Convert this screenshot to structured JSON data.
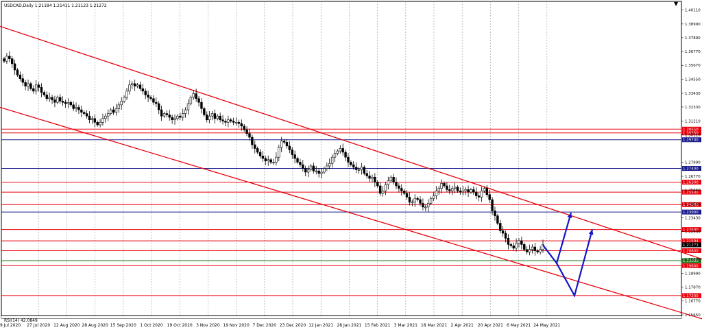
{
  "chart_data": {
    "type": "candlestick",
    "header": "USDCAD,Daily  1.21184 1.21411 1.21123 1.21272",
    "indicator_label": "RSI(14) 42.0849",
    "yticks": [
      "1.40110",
      "1.38990",
      "1.37890",
      "1.36770",
      "1.35670",
      "1.34550",
      "1.33430",
      "1.32330",
      "1.31210",
      "1.30110",
      "1.27890",
      "1.26770",
      "1.25660",
      "1.24540",
      "1.23430",
      "1.22330",
      "1.21210",
      "1.20100",
      "1.18990",
      "1.17870",
      "1.16770",
      "1.15650"
    ],
    "xticks": [
      "9 Jul 2020",
      "27 Jul 2020",
      "12 Aug 2020",
      "28 Aug 2020",
      "15 Sep 2020",
      "1 Oct 2020",
      "19 Oct 2020",
      "3 Nov 2020",
      "19 Nov 2020",
      "7 Dec 2020",
      "23 Dec 2020",
      "12 Jan 2021",
      "28 Jan 2021",
      "15 Feb 2021",
      "3 Mar 2021",
      "18 Mar 2021",
      "2 Apr 2021",
      "20 Apr 2021",
      "6 May 2021",
      "24 May 2021"
    ],
    "ylim": [
      1.156,
      1.408
    ],
    "levels": [
      {
        "value": 1.3055,
        "label": "1.30550",
        "color": "#e8000b"
      },
      {
        "value": 1.3025,
        "label": "1.30250",
        "color": "#e8000b"
      },
      {
        "value": 1.297,
        "label": "1.29700",
        "color": "#1a1a8c"
      },
      {
        "value": 1.274,
        "label": "1.27400",
        "color": "#1a1a8c"
      },
      {
        "value": 1.263,
        "label": "1.26300",
        "color": "#e8000b"
      },
      {
        "value": 1.255,
        "label": "1.25500",
        "color": "#e8000b"
      },
      {
        "value": 1.245,
        "label": "1.24500",
        "color": "#e8000b"
      },
      {
        "value": 1.239,
        "label": "1.23900",
        "color": "#1a1a8c"
      },
      {
        "value": 1.225,
        "label": "1.22500",
        "color": "#e8000b"
      },
      {
        "value": 1.2159,
        "label": "1.21594",
        "color": "#e8000b"
      },
      {
        "value": 1.208,
        "label": "1.20800",
        "color": "#e8000b"
      },
      {
        "value": 1.2,
        "label": "1.20000",
        "color": "#1a7a1a"
      },
      {
        "value": 1.196,
        "label": "1.19600",
        "color": "#e8000b"
      },
      {
        "value": 1.172,
        "label": "1.17200",
        "color": "#e8000b"
      }
    ],
    "price_marker": {
      "value": 1.2127,
      "label": "1.21272"
    },
    "channel_upper": [
      [
        0,
        1.388
      ],
      [
        1024,
        1.2013
      ]
    ],
    "channel_lower": [
      [
        0,
        1.323
      ],
      [
        1024,
        1.1534
      ]
    ],
    "arrows": [
      {
        "points": [
          [
            792,
            1.2125
          ],
          [
            812,
            1.198
          ],
          [
            833,
            1.2385
          ]
        ],
        "color": "#1414c8"
      },
      {
        "points": [
          [
            812,
            1.198
          ],
          [
            838,
            1.172
          ],
          [
            864,
            1.225
          ]
        ],
        "color": "#1414c8"
      }
    ],
    "closes": [
      1.36,
      1.364,
      1.362,
      1.358,
      1.353,
      1.349,
      1.346,
      1.343,
      1.34,
      1.342,
      1.338,
      1.336,
      1.341,
      1.339,
      1.335,
      1.333,
      1.33,
      1.331,
      1.329,
      1.327,
      1.331,
      1.328,
      1.327,
      1.326,
      1.327,
      1.325,
      1.322,
      1.323,
      1.321,
      1.319,
      1.318,
      1.316,
      1.313,
      1.314,
      1.311,
      1.309,
      1.311,
      1.314,
      1.316,
      1.318,
      1.321,
      1.319,
      1.322,
      1.325,
      1.328,
      1.331,
      1.336,
      1.341,
      1.342,
      1.34,
      1.341,
      1.338,
      1.336,
      1.333,
      1.331,
      1.33,
      1.327,
      1.326,
      1.321,
      1.316,
      1.318,
      1.317,
      1.315,
      1.313,
      1.314,
      1.316,
      1.315,
      1.318,
      1.321,
      1.326,
      1.331,
      1.334,
      1.33,
      1.327,
      1.322,
      1.317,
      1.313,
      1.316,
      1.318,
      1.314,
      1.316,
      1.313,
      1.312,
      1.311,
      1.313,
      1.312,
      1.311,
      1.311,
      1.31,
      1.308,
      1.305,
      1.302,
      1.299,
      1.293,
      1.29,
      1.287,
      1.284,
      1.282,
      1.28,
      1.281,
      1.279,
      1.279,
      1.283,
      1.291,
      1.296,
      1.295,
      1.292,
      1.289,
      1.285,
      1.282,
      1.279,
      1.277,
      1.274,
      1.271,
      1.273,
      1.276,
      1.272,
      1.272,
      1.27,
      1.271,
      1.274,
      1.276,
      1.278,
      1.283,
      1.286,
      1.288,
      1.29,
      1.287,
      1.283,
      1.279,
      1.277,
      1.275,
      1.273,
      1.273,
      1.275,
      1.27,
      1.268,
      1.266,
      1.267,
      1.263,
      1.26,
      1.254,
      1.256,
      1.261,
      1.264,
      1.267,
      1.263,
      1.26,
      1.258,
      1.256,
      1.254,
      1.251,
      1.247,
      1.247,
      1.25,
      1.249,
      1.246,
      1.243,
      1.243,
      1.246,
      1.25,
      1.252,
      1.256,
      1.258,
      1.262,
      1.26,
      1.257,
      1.256,
      1.258,
      1.259,
      1.256,
      1.255,
      1.256,
      1.257,
      1.255,
      1.257,
      1.255,
      1.252,
      1.251,
      1.256,
      1.258,
      1.253,
      1.249,
      1.24,
      1.236,
      1.23,
      1.224,
      1.222,
      1.218,
      1.213,
      1.212,
      1.21,
      1.214,
      1.216,
      1.213,
      1.209,
      1.207,
      1.209,
      1.211,
      1.208,
      1.207,
      1.209,
      1.213
    ]
  }
}
